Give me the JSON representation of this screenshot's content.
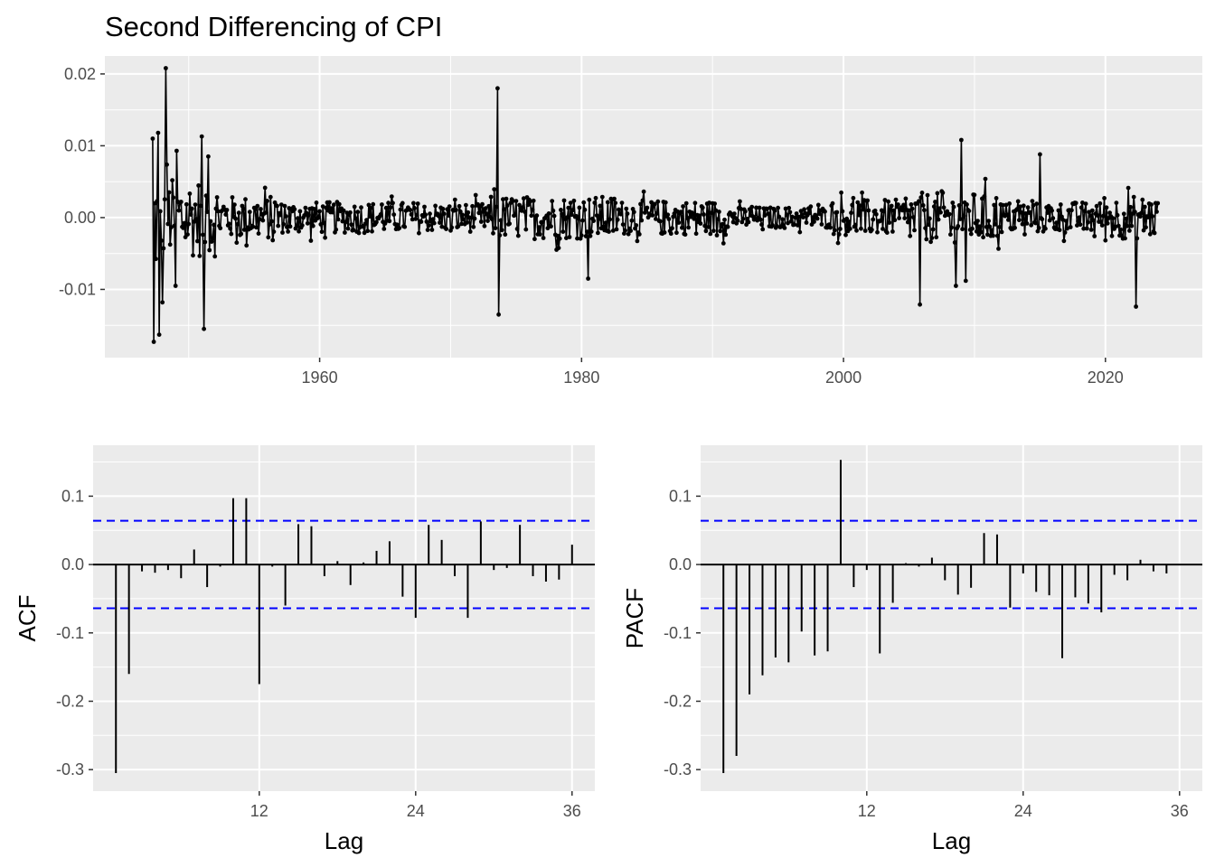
{
  "chart_data": [
    {
      "type": "line",
      "title": "Second Differencing of CPI",
      "xlabel": "",
      "ylabel": "",
      "xlim": [
        1943.6,
        2027.4
      ],
      "ylim": [
        -0.0195,
        0.0225
      ],
      "x_ticks": [
        1960,
        1980,
        2000,
        2020
      ],
      "x_tick_labels": [
        "1960",
        "1980",
        "2000",
        "2020"
      ],
      "y_ticks": [
        -0.01,
        0.0,
        0.01,
        0.02
      ],
      "y_tick_labels": [
        "-0.01",
        "0.00",
        "0.01",
        "0.02"
      ],
      "grid": true,
      "markers": true,
      "x_start": 1947.25,
      "x_step": 0.0833333,
      "key_points": [
        {
          "x": 1947.25,
          "y": 0.011
        },
        {
          "x": 1947.33,
          "y": -0.0173
        },
        {
          "x": 1947.67,
          "y": 0.0118
        },
        {
          "x": 1947.75,
          "y": -0.0163
        },
        {
          "x": 1948.0,
          "y": -0.0118
        },
        {
          "x": 1948.25,
          "y": 0.0208
        },
        {
          "x": 1949.0,
          "y": -0.0095
        },
        {
          "x": 1949.08,
          "y": 0.0093
        },
        {
          "x": 1951.0,
          "y": 0.0113
        },
        {
          "x": 1951.17,
          "y": -0.0155
        },
        {
          "x": 1951.5,
          "y": 0.0085
        },
        {
          "x": 1973.58,
          "y": 0.018
        },
        {
          "x": 1973.67,
          "y": -0.0135
        },
        {
          "x": 1980.5,
          "y": -0.0085
        },
        {
          "x": 2005.83,
          "y": -0.0121
        },
        {
          "x": 2008.58,
          "y": -0.0095
        },
        {
          "x": 2009.0,
          "y": 0.0108
        },
        {
          "x": 2009.33,
          "y": -0.0088
        },
        {
          "x": 2015.0,
          "y": 0.0088
        },
        {
          "x": 2022.33,
          "y": -0.0124
        }
      ]
    },
    {
      "type": "bar",
      "xlabel": "Lag",
      "ylabel": "ACF",
      "xlim": [
        -0.75,
        37.75
      ],
      "ylim": [
        -0.3315,
        0.1745
      ],
      "x_ticks": [
        12,
        24,
        36
      ],
      "x_tick_labels": [
        "12",
        "24",
        "36"
      ],
      "y_ticks": [
        -0.3,
        -0.2,
        -0.1,
        0.0,
        0.1
      ],
      "y_tick_labels": [
        "-0.3",
        "-0.2",
        "-0.1",
        "0.0",
        "0.1"
      ],
      "confidence_bound": 0.064,
      "lags": [
        1,
        2,
        3,
        4,
        5,
        6,
        7,
        8,
        9,
        10,
        11,
        12,
        13,
        14,
        15,
        16,
        17,
        18,
        19,
        20,
        21,
        22,
        23,
        24,
        25,
        26,
        27,
        28,
        29,
        30,
        31,
        32,
        33,
        34,
        35,
        36
      ],
      "values": [
        -0.305,
        -0.16,
        -0.01,
        -0.012,
        -0.008,
        -0.02,
        0.022,
        -0.033,
        -0.003,
        0.097,
        0.097,
        -0.175,
        -0.003,
        -0.06,
        0.059,
        0.056,
        -0.017,
        0.005,
        -0.03,
        0.003,
        0.02,
        0.034,
        -0.047,
        -0.078,
        0.058,
        0.036,
        -0.017,
        -0.078,
        0.063,
        -0.008,
        -0.005,
        0.058,
        -0.017,
        -0.025,
        -0.022,
        0.029
      ]
    },
    {
      "type": "bar",
      "xlabel": "Lag",
      "ylabel": "PACF",
      "xlim": [
        -0.75,
        37.75
      ],
      "ylim": [
        -0.3315,
        0.1745
      ],
      "x_ticks": [
        12,
        24,
        36
      ],
      "x_tick_labels": [
        "12",
        "24",
        "36"
      ],
      "y_ticks": [
        -0.3,
        -0.2,
        -0.1,
        0.0,
        0.1
      ],
      "y_tick_labels": [
        "-0.3",
        "-0.2",
        "-0.1",
        "0.0",
        "0.1"
      ],
      "confidence_bound": 0.064,
      "lags": [
        1,
        2,
        3,
        4,
        5,
        6,
        7,
        8,
        9,
        10,
        11,
        12,
        13,
        14,
        15,
        16,
        17,
        18,
        19,
        20,
        21,
        22,
        23,
        24,
        25,
        26,
        27,
        28,
        29,
        30,
        31,
        32,
        33,
        34,
        35,
        36
      ],
      "values": [
        -0.305,
        -0.28,
        -0.19,
        -0.162,
        -0.136,
        -0.143,
        -0.098,
        -0.133,
        -0.127,
        0.153,
        -0.033,
        -0.008,
        -0.13,
        -0.056,
        0.002,
        -0.003,
        0.01,
        -0.023,
        -0.044,
        -0.034,
        0.046,
        0.044,
        -0.063,
        -0.013,
        -0.04,
        -0.045,
        -0.137,
        -0.048,
        -0.057,
        -0.07,
        -0.015,
        -0.023,
        0.007,
        -0.01,
        -0.013,
        0.0
      ]
    }
  ]
}
